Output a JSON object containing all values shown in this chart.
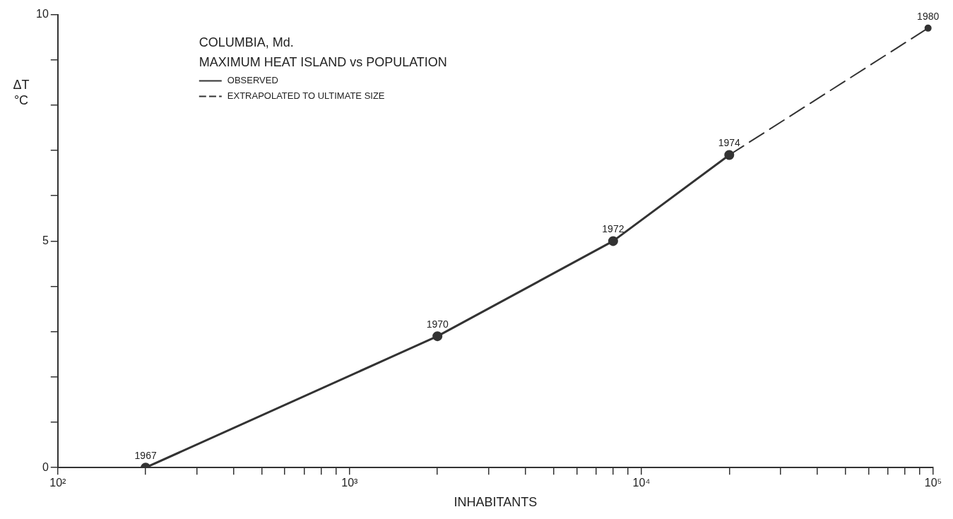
{
  "chart_data": {
    "type": "line",
    "title": "COLUMBIA, Md.",
    "subtitle": "MAXIMUM HEAT ISLAND vs POPULATION",
    "xlabel": "INHABITANTS",
    "ylabel": "ΔT °C",
    "log": "x",
    "grid": false,
    "legend": "top left",
    "marker": "circle",
    "xlim": [
      100,
      100000
    ],
    "ylim": [
      0,
      10
    ],
    "xticks": [
      {
        "value": 100,
        "label": "10²"
      },
      {
        "value": 200,
        "label": null
      },
      {
        "value": 300,
        "label": null
      },
      {
        "value": 400,
        "label": null
      },
      {
        "value": 500,
        "label": null
      },
      {
        "value": 600,
        "label": null
      },
      {
        "value": 700,
        "label": null
      },
      {
        "value": 800,
        "label": null
      },
      {
        "value": 900,
        "label": null
      },
      {
        "value": 1000,
        "label": "10³"
      },
      {
        "value": 2000,
        "label": null
      },
      {
        "value": 3000,
        "label": null
      },
      {
        "value": 4000,
        "label": null
      },
      {
        "value": 5000,
        "label": null
      },
      {
        "value": 6000,
        "label": null
      },
      {
        "value": 7000,
        "label": null
      },
      {
        "value": 8000,
        "label": null
      },
      {
        "value": 9000,
        "label": null
      },
      {
        "value": 10000,
        "label": "10⁴"
      },
      {
        "value": 20000,
        "label": null
      },
      {
        "value": 30000,
        "label": null
      },
      {
        "value": 40000,
        "label": null
      },
      {
        "value": 50000,
        "label": null
      },
      {
        "value": 60000,
        "label": null
      },
      {
        "value": 70000,
        "label": null
      },
      {
        "value": 80000,
        "label": null
      },
      {
        "value": 90000,
        "label": null
      },
      {
        "value": 100000,
        "label": "10⁵"
      }
    ],
    "yticks": [
      0,
      {
        "value": 1,
        "label": null
      },
      {
        "value": 2,
        "label": null
      },
      {
        "value": 3,
        "label": null
      },
      {
        "value": 4,
        "label": null
      },
      5,
      {
        "value": 6,
        "label": null
      },
      {
        "value": 7,
        "label": null
      },
      {
        "value": 8,
        "label": null
      },
      {
        "value": 9,
        "label": null
      },
      10
    ],
    "series": [
      {
        "name": "OBSERVED",
        "color": "#333333",
        "line_style": "solid",
        "x": [
          200,
          2000,
          8000,
          20000
        ],
        "values": [
          0,
          2.9,
          5.0,
          6.9
        ]
      },
      {
        "name": "EXTRAPOLATED TO ULTIMATE SIZE",
        "color": "#333333",
        "line_style": "dashed",
        "x": [
          20000,
          96000
        ],
        "values": [
          6.9,
          9.7
        ]
      }
    ],
    "annotations": [
      {
        "text": "1967",
        "x": 200,
        "y": 0
      },
      {
        "text": "1970",
        "x": 2000,
        "y": 2.9
      },
      {
        "text": "1972",
        "x": 8000,
        "y": 5.0
      },
      {
        "text": "1974",
        "x": 20000,
        "y": 6.9
      },
      {
        "text": "1980",
        "x": 96000,
        "y": 9.7
      }
    ]
  }
}
